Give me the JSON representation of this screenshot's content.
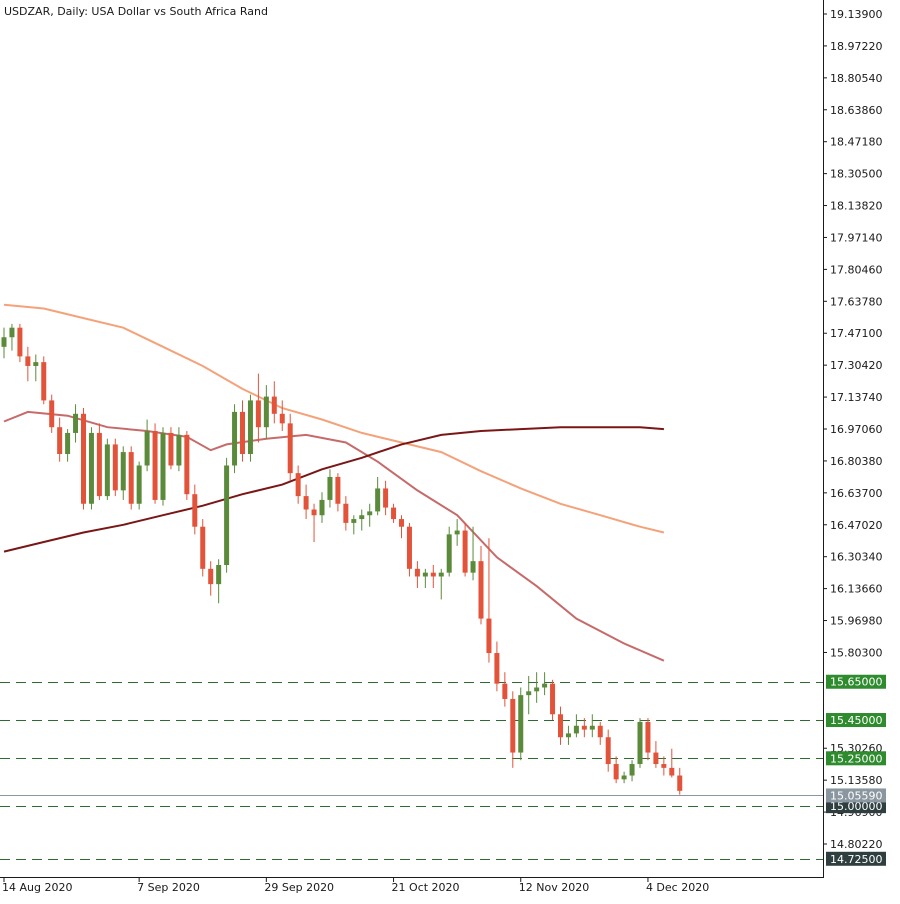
{
  "chart_data": {
    "type": "candlestick",
    "title": "USDZAR, Daily:  USA Dollar vs South Africa Rand",
    "ylim": [
      14.64,
      19.19
    ],
    "y_ticks": [
      "19.13900",
      "18.97220",
      "18.80540",
      "18.63860",
      "18.47180",
      "18.30500",
      "18.13820",
      "17.97140",
      "17.80460",
      "17.63780",
      "17.47100",
      "17.30420",
      "17.13740",
      "16.97060",
      "16.80380",
      "16.63700",
      "16.47020",
      "16.30340",
      "16.13660",
      "15.96980",
      "15.80300",
      "15.30260",
      "15.13580",
      "14.96900",
      "14.80220"
    ],
    "x_ticks": [
      {
        "label": "14 Aug 2020",
        "index": 0
      },
      {
        "label": "7 Sep 2020",
        "index": 17
      },
      {
        "label": "29 Sep 2020",
        "index": 33
      },
      {
        "label": "21 Oct 2020",
        "index": 49
      },
      {
        "label": "12 Nov 2020",
        "index": 65
      },
      {
        "label": "4 Dec 2020",
        "index": 81
      }
    ],
    "candles": [
      {
        "o": 17.4,
        "h": 17.5,
        "l": 17.34,
        "c": 17.45
      },
      {
        "o": 17.45,
        "h": 17.52,
        "l": 17.38,
        "c": 17.5
      },
      {
        "o": 17.5,
        "h": 17.52,
        "l": 17.32,
        "c": 17.35
      },
      {
        "o": 17.35,
        "h": 17.4,
        "l": 17.22,
        "c": 17.3
      },
      {
        "o": 17.3,
        "h": 17.36,
        "l": 17.22,
        "c": 17.32
      },
      {
        "o": 17.32,
        "h": 17.35,
        "l": 17.1,
        "c": 17.12
      },
      {
        "o": 17.12,
        "h": 17.15,
        "l": 16.95,
        "c": 16.98
      },
      {
        "o": 16.98,
        "h": 17.03,
        "l": 16.8,
        "c": 16.84
      },
      {
        "o": 16.84,
        "h": 16.97,
        "l": 16.8,
        "c": 16.95
      },
      {
        "o": 16.95,
        "h": 17.1,
        "l": 16.9,
        "c": 17.05
      },
      {
        "o": 17.05,
        "h": 17.08,
        "l": 16.55,
        "c": 16.58
      },
      {
        "o": 16.58,
        "h": 16.98,
        "l": 16.55,
        "c": 16.95
      },
      {
        "o": 16.95,
        "h": 17.0,
        "l": 16.6,
        "c": 16.62
      },
      {
        "o": 16.62,
        "h": 16.92,
        "l": 16.6,
        "c": 16.89
      },
      {
        "o": 16.89,
        "h": 16.92,
        "l": 16.62,
        "c": 16.65
      },
      {
        "o": 16.65,
        "h": 16.88,
        "l": 16.6,
        "c": 16.85
      },
      {
        "o": 16.85,
        "h": 16.88,
        "l": 16.55,
        "c": 16.58
      },
      {
        "o": 16.58,
        "h": 16.8,
        "l": 16.55,
        "c": 16.78
      },
      {
        "o": 16.78,
        "h": 17.02,
        "l": 16.75,
        "c": 16.96
      },
      {
        "o": 16.96,
        "h": 17.0,
        "l": 16.58,
        "c": 16.6
      },
      {
        "o": 16.6,
        "h": 16.98,
        "l": 16.57,
        "c": 16.95
      },
      {
        "o": 16.95,
        "h": 16.98,
        "l": 16.76,
        "c": 16.78
      },
      {
        "o": 16.78,
        "h": 16.98,
        "l": 16.75,
        "c": 16.94
      },
      {
        "o": 16.94,
        "h": 16.96,
        "l": 16.6,
        "c": 16.63
      },
      {
        "o": 16.63,
        "h": 16.68,
        "l": 16.42,
        "c": 16.46
      },
      {
        "o": 16.46,
        "h": 16.5,
        "l": 16.2,
        "c": 16.24
      },
      {
        "o": 16.24,
        "h": 16.28,
        "l": 16.1,
        "c": 16.16
      },
      {
        "o": 16.16,
        "h": 16.29,
        "l": 16.06,
        "c": 16.26
      },
      {
        "o": 16.26,
        "h": 16.82,
        "l": 16.22,
        "c": 16.78
      },
      {
        "o": 16.78,
        "h": 17.1,
        "l": 16.74,
        "c": 17.06
      },
      {
        "o": 17.06,
        "h": 17.12,
        "l": 16.8,
        "c": 16.84
      },
      {
        "o": 16.84,
        "h": 17.15,
        "l": 16.8,
        "c": 17.12
      },
      {
        "o": 17.12,
        "h": 17.26,
        "l": 16.9,
        "c": 16.98
      },
      {
        "o": 16.98,
        "h": 17.2,
        "l": 16.92,
        "c": 17.14
      },
      {
        "o": 17.14,
        "h": 17.22,
        "l": 17.0,
        "c": 17.05
      },
      {
        "o": 17.05,
        "h": 17.12,
        "l": 16.96,
        "c": 17.0
      },
      {
        "o": 17.0,
        "h": 17.05,
        "l": 16.7,
        "c": 16.74
      },
      {
        "o": 16.74,
        "h": 16.78,
        "l": 16.58,
        "c": 16.62
      },
      {
        "o": 16.62,
        "h": 16.68,
        "l": 16.5,
        "c": 16.55
      },
      {
        "o": 16.55,
        "h": 16.58,
        "l": 16.38,
        "c": 16.52
      },
      {
        "o": 16.52,
        "h": 16.64,
        "l": 16.48,
        "c": 16.6
      },
      {
        "o": 16.6,
        "h": 16.76,
        "l": 16.56,
        "c": 16.72
      },
      {
        "o": 16.72,
        "h": 16.74,
        "l": 16.54,
        "c": 16.58
      },
      {
        "o": 16.58,
        "h": 16.62,
        "l": 16.44,
        "c": 16.48
      },
      {
        "o": 16.48,
        "h": 16.52,
        "l": 16.42,
        "c": 16.5
      },
      {
        "o": 16.5,
        "h": 16.55,
        "l": 16.44,
        "c": 16.52
      },
      {
        "o": 16.52,
        "h": 16.58,
        "l": 16.46,
        "c": 16.54
      },
      {
        "o": 16.54,
        "h": 16.72,
        "l": 16.52,
        "c": 16.66
      },
      {
        "o": 16.66,
        "h": 16.7,
        "l": 16.52,
        "c": 16.56
      },
      {
        "o": 16.56,
        "h": 16.58,
        "l": 16.48,
        "c": 16.5
      },
      {
        "o": 16.5,
        "h": 16.52,
        "l": 16.4,
        "c": 16.46
      },
      {
        "o": 16.46,
        "h": 16.48,
        "l": 16.2,
        "c": 16.24
      },
      {
        "o": 16.24,
        "h": 16.28,
        "l": 16.14,
        "c": 16.2
      },
      {
        "o": 16.2,
        "h": 16.24,
        "l": 16.14,
        "c": 16.22
      },
      {
        "o": 16.22,
        "h": 16.26,
        "l": 16.14,
        "c": 16.2
      },
      {
        "o": 16.2,
        "h": 16.24,
        "l": 16.08,
        "c": 16.22
      },
      {
        "o": 16.22,
        "h": 16.46,
        "l": 16.2,
        "c": 16.42
      },
      {
        "o": 16.42,
        "h": 16.5,
        "l": 16.36,
        "c": 16.44
      },
      {
        "o": 16.44,
        "h": 16.48,
        "l": 16.2,
        "c": 16.22
      },
      {
        "o": 16.22,
        "h": 16.46,
        "l": 16.18,
        "c": 16.28
      },
      {
        "o": 16.28,
        "h": 16.36,
        "l": 15.95,
        "c": 15.98
      },
      {
        "o": 15.98,
        "h": 16.4,
        "l": 15.75,
        "c": 15.8
      },
      {
        "o": 15.8,
        "h": 15.86,
        "l": 15.6,
        "c": 15.64
      },
      {
        "o": 15.64,
        "h": 15.7,
        "l": 15.52,
        "c": 15.56
      },
      {
        "o": 15.56,
        "h": 15.6,
        "l": 15.2,
        "c": 15.28
      },
      {
        "o": 15.28,
        "h": 15.62,
        "l": 15.24,
        "c": 15.58
      },
      {
        "o": 15.58,
        "h": 15.68,
        "l": 15.48,
        "c": 15.6
      },
      {
        "o": 15.6,
        "h": 15.7,
        "l": 15.54,
        "c": 15.62
      },
      {
        "o": 15.62,
        "h": 15.7,
        "l": 15.58,
        "c": 15.64
      },
      {
        "o": 15.64,
        "h": 15.66,
        "l": 15.45,
        "c": 15.48
      },
      {
        "o": 15.48,
        "h": 15.52,
        "l": 15.32,
        "c": 15.36
      },
      {
        "o": 15.36,
        "h": 15.42,
        "l": 15.32,
        "c": 15.38
      },
      {
        "o": 15.38,
        "h": 15.48,
        "l": 15.36,
        "c": 15.42
      },
      {
        "o": 15.42,
        "h": 15.46,
        "l": 15.36,
        "c": 15.4
      },
      {
        "o": 15.4,
        "h": 15.48,
        "l": 15.36,
        "c": 15.42
      },
      {
        "o": 15.42,
        "h": 15.44,
        "l": 15.32,
        "c": 15.36
      },
      {
        "o": 15.36,
        "h": 15.4,
        "l": 15.18,
        "c": 15.22
      },
      {
        "o": 15.22,
        "h": 15.26,
        "l": 15.12,
        "c": 15.14
      },
      {
        "o": 15.14,
        "h": 15.18,
        "l": 15.12,
        "c": 15.16
      },
      {
        "o": 15.16,
        "h": 15.24,
        "l": 15.13,
        "c": 15.22
      },
      {
        "o": 15.22,
        "h": 15.46,
        "l": 15.2,
        "c": 15.44
      },
      {
        "o": 15.44,
        "h": 15.46,
        "l": 15.24,
        "c": 15.28
      },
      {
        "o": 15.28,
        "h": 15.34,
        "l": 15.2,
        "c": 15.22
      },
      {
        "o": 15.22,
        "h": 15.26,
        "l": 15.16,
        "c": 15.2
      },
      {
        "o": 15.2,
        "h": 15.3,
        "l": 15.15,
        "c": 15.16
      },
      {
        "o": 15.16,
        "h": 15.2,
        "l": 15.06,
        "c": 15.08
      }
    ],
    "series": [
      {
        "color": "#f4a27a",
        "points": [
          [
            0,
            17.62
          ],
          [
            5,
            17.6
          ],
          [
            10,
            17.55
          ],
          [
            15,
            17.5
          ],
          [
            20,
            17.4
          ],
          [
            25,
            17.3
          ],
          [
            30,
            17.18
          ],
          [
            35,
            17.08
          ],
          [
            40,
            17.02
          ],
          [
            45,
            16.95
          ],
          [
            50,
            16.9
          ],
          [
            55,
            16.85
          ],
          [
            60,
            16.75
          ],
          [
            65,
            16.66
          ],
          [
            70,
            16.58
          ],
          [
            75,
            16.52
          ],
          [
            80,
            16.46
          ],
          [
            83,
            16.43
          ]
        ]
      },
      {
        "color": "#c66a6a",
        "points": [
          [
            0,
            17.01
          ],
          [
            3,
            17.06
          ],
          [
            8,
            17.04
          ],
          [
            13,
            16.98
          ],
          [
            18,
            16.96
          ],
          [
            23,
            16.93
          ],
          [
            26,
            16.86
          ],
          [
            28,
            16.89
          ],
          [
            33,
            16.92
          ],
          [
            38,
            16.94
          ],
          [
            43,
            16.9
          ],
          [
            47,
            16.8
          ],
          [
            52,
            16.65
          ],
          [
            57,
            16.52
          ],
          [
            62,
            16.3
          ],
          [
            67,
            16.15
          ],
          [
            72,
            15.98
          ],
          [
            78,
            15.85
          ],
          [
            83,
            15.76
          ]
        ]
      },
      {
        "color": "#7a1616",
        "points": [
          [
            0,
            16.33
          ],
          [
            5,
            16.38
          ],
          [
            10,
            16.43
          ],
          [
            15,
            16.47
          ],
          [
            20,
            16.52
          ],
          [
            25,
            16.57
          ],
          [
            30,
            16.63
          ],
          [
            35,
            16.68
          ],
          [
            40,
            16.76
          ],
          [
            45,
            16.82
          ],
          [
            50,
            16.89
          ],
          [
            55,
            16.94
          ],
          [
            60,
            16.96
          ],
          [
            65,
            16.97
          ],
          [
            70,
            16.98
          ],
          [
            75,
            16.98
          ],
          [
            80,
            16.98
          ],
          [
            83,
            16.97
          ]
        ]
      }
    ],
    "levels": [
      {
        "value": 15.65,
        "label": "15.65000",
        "color": "#2e8b2e"
      },
      {
        "value": 15.45,
        "label": "15.45000",
        "color": "#2e8b2e"
      },
      {
        "value": 15.25,
        "label": "15.25000",
        "color": "#2e8b2e"
      },
      {
        "value": 15.0,
        "label": "15.00000",
        "color": "#2f3f3f"
      },
      {
        "value": 14.725,
        "label": "14.72500",
        "color": "#2f3f3f"
      }
    ],
    "current_price": {
      "value": 15.0559,
      "label": "15.05590",
      "color": "#8a97a0"
    },
    "colors": {
      "up": "#5a8a3a",
      "down": "#e2533a",
      "grid_dash": "#2e6b2e",
      "axis": "#1a1a1a"
    }
  }
}
